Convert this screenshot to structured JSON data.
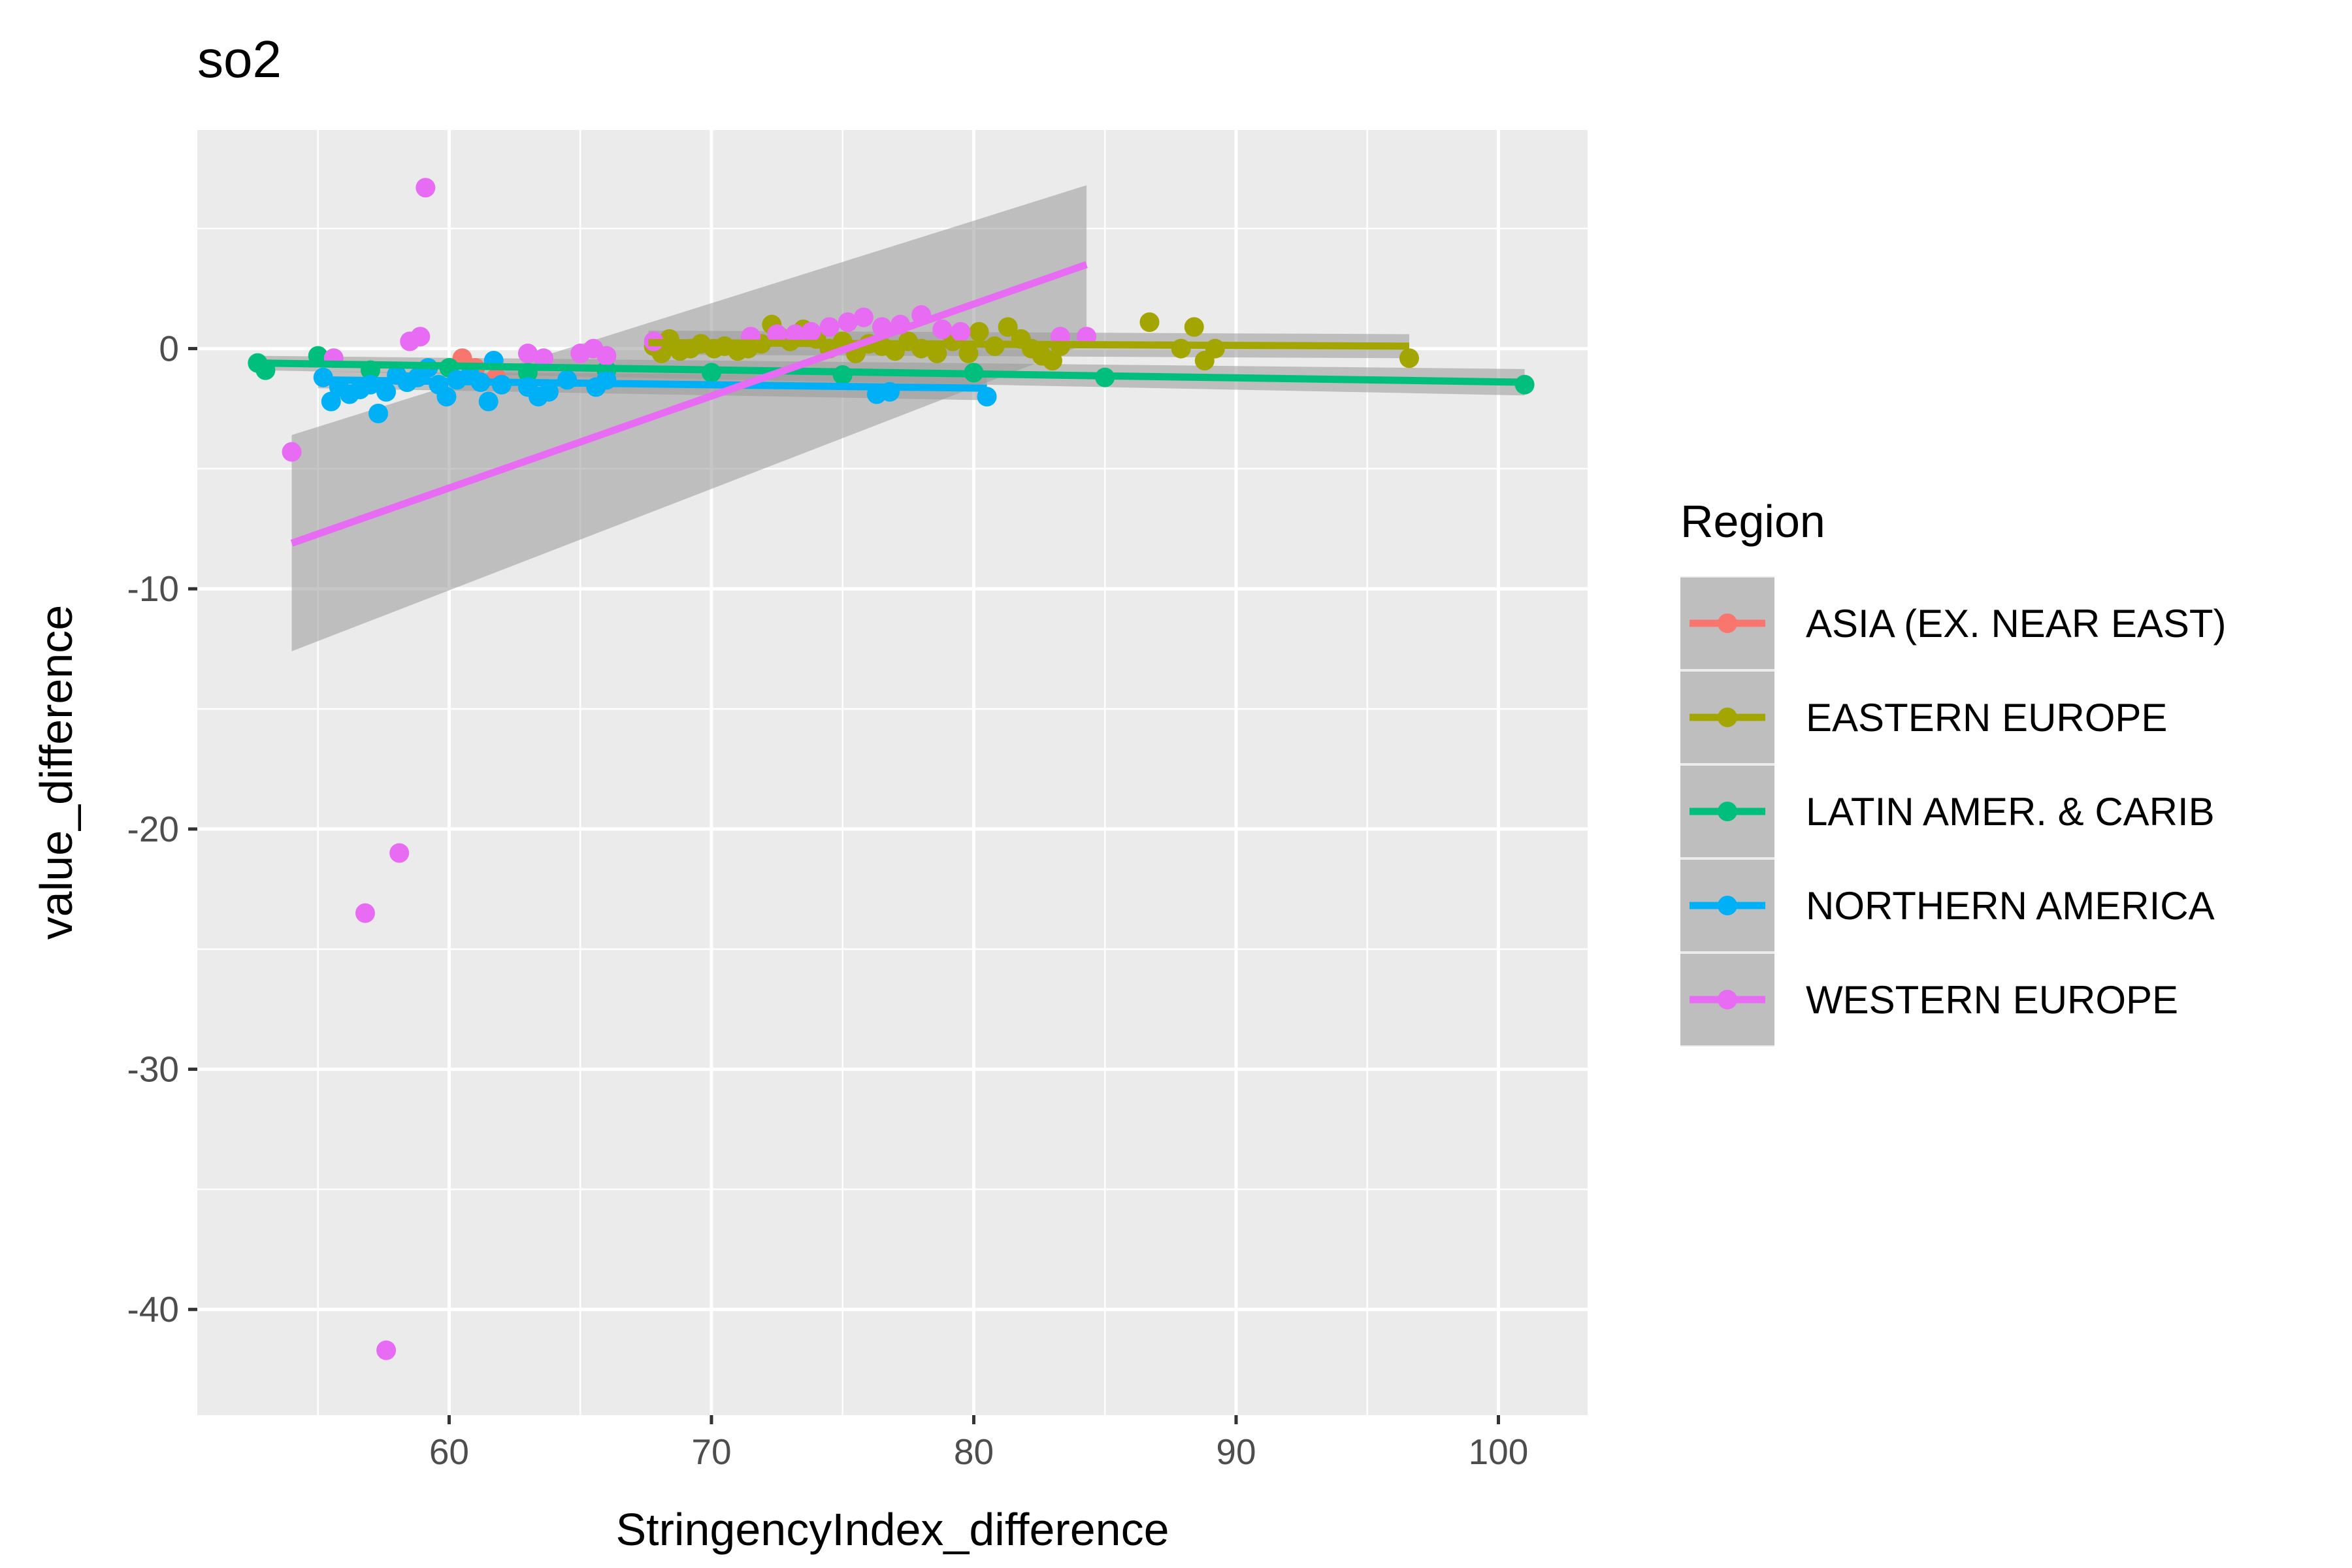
{
  "chart_data": {
    "type": "scatter",
    "title": "so2",
    "xlabel": "StringencyIndex_difference",
    "ylabel": "value_difference",
    "xlim": [
      50.4,
      103.4
    ],
    "ylim": [
      -44.4,
      9.1
    ],
    "x_ticks": [
      60,
      70,
      80,
      90,
      100
    ],
    "y_ticks": [
      0,
      -10,
      -20,
      -30,
      -40
    ],
    "grid": true,
    "legend_title": "Region",
    "legend_position": "right",
    "series": [
      {
        "name": "ASIA (EX. NEAR EAST)",
        "color": "#F8766D",
        "points": [
          [
            60.5,
            -0.4
          ],
          [
            61.0,
            -0.8
          ],
          [
            61.8,
            -1.2
          ]
        ],
        "fit": null
      },
      {
        "name": "EASTERN EUROPE",
        "color": "#A3A500",
        "points": [
          [
            67.8,
            0.1
          ],
          [
            68.1,
            -0.2
          ],
          [
            68.4,
            0.4
          ],
          [
            68.8,
            -0.1
          ],
          [
            69.2,
            0.0
          ],
          [
            69.6,
            0.2
          ],
          [
            70.1,
            0.0
          ],
          [
            70.5,
            0.1
          ],
          [
            71.0,
            -0.1
          ],
          [
            71.4,
            0.0
          ],
          [
            71.9,
            0.2
          ],
          [
            72.3,
            1.0
          ],
          [
            72.6,
            0.5
          ],
          [
            73.0,
            0.3
          ],
          [
            73.5,
            0.8
          ],
          [
            74.0,
            0.4
          ],
          [
            74.5,
            0.0
          ],
          [
            75.0,
            0.3
          ],
          [
            75.5,
            -0.2
          ],
          [
            76.0,
            0.2
          ],
          [
            76.5,
            0.1
          ],
          [
            77.0,
            -0.1
          ],
          [
            77.5,
            0.3
          ],
          [
            78.0,
            0.0
          ],
          [
            78.6,
            -0.2
          ],
          [
            79.2,
            0.3
          ],
          [
            79.8,
            -0.2
          ],
          [
            80.2,
            0.7
          ],
          [
            80.8,
            0.1
          ],
          [
            81.3,
            0.9
          ],
          [
            81.8,
            0.4
          ],
          [
            82.2,
            0.0
          ],
          [
            82.6,
            -0.3
          ],
          [
            83.0,
            -0.5
          ],
          [
            83.3,
            0.1
          ],
          [
            86.7,
            1.1
          ],
          [
            87.9,
            0.0
          ],
          [
            88.4,
            0.9
          ],
          [
            88.8,
            -0.5
          ],
          [
            89.2,
            0.0
          ],
          [
            96.6,
            -0.4
          ]
        ],
        "fit": {
          "x": [
            67.6,
            96.6
          ],
          "y": [
            0.25,
            0.1
          ],
          "ci_half_width": [
            0.5,
            0.5
          ]
        }
      },
      {
        "name": "LATIN AMER. & CARIB",
        "color": "#00BF7D",
        "points": [
          [
            52.7,
            -0.6
          ],
          [
            53.0,
            -0.9
          ],
          [
            55.0,
            -0.3
          ],
          [
            57.0,
            -0.9
          ],
          [
            60.0,
            -0.8
          ],
          [
            63.0,
            -1.0
          ],
          [
            66.0,
            -0.9
          ],
          [
            70.0,
            -1.0
          ],
          [
            75.0,
            -1.1
          ],
          [
            80.0,
            -1.0
          ],
          [
            85.0,
            -1.2
          ],
          [
            101.0,
            -1.5
          ]
        ],
        "fit": {
          "x": [
            52.7,
            101.0
          ],
          "y": [
            -0.6,
            -1.4
          ],
          "ci_half_width": [
            0.3,
            0.55
          ]
        }
      },
      {
        "name": "NORTHERN AMERICA",
        "color": "#00B0F6",
        "points": [
          [
            55.2,
            -1.2
          ],
          [
            55.5,
            -2.2
          ],
          [
            55.8,
            -1.6
          ],
          [
            56.2,
            -1.9
          ],
          [
            56.6,
            -1.7
          ],
          [
            57.0,
            -1.5
          ],
          [
            57.3,
            -2.7
          ],
          [
            57.6,
            -1.8
          ],
          [
            58.0,
            -1.1
          ],
          [
            58.4,
            -1.4
          ],
          [
            58.8,
            -1.2
          ],
          [
            59.2,
            -0.8
          ],
          [
            59.6,
            -1.5
          ],
          [
            59.9,
            -2.0
          ],
          [
            60.3,
            -1.3
          ],
          [
            60.8,
            -1.1
          ],
          [
            61.2,
            -1.4
          ],
          [
            61.5,
            -2.2
          ],
          [
            61.7,
            -0.5
          ],
          [
            62.0,
            -1.5
          ],
          [
            63.0,
            -1.6
          ],
          [
            63.4,
            -2.0
          ],
          [
            63.8,
            -1.8
          ],
          [
            64.5,
            -1.3
          ],
          [
            65.6,
            -1.6
          ],
          [
            66.0,
            -1.3
          ],
          [
            76.3,
            -1.9
          ],
          [
            76.8,
            -1.8
          ],
          [
            80.5,
            -2.0
          ]
        ],
        "fit": {
          "x": [
            55.0,
            80.5
          ],
          "y": [
            -1.3,
            -1.65
          ],
          "ci_half_width": [
            0.35,
            0.5
          ]
        }
      },
      {
        "name": "WESTERN EUROPE",
        "color": "#E76BF3",
        "points": [
          [
            54.0,
            -4.3
          ],
          [
            55.6,
            -0.4
          ],
          [
            56.8,
            -23.5
          ],
          [
            57.6,
            -41.7
          ],
          [
            58.1,
            -21.0
          ],
          [
            58.5,
            0.3
          ],
          [
            58.9,
            0.5
          ],
          [
            59.1,
            6.7
          ],
          [
            63.0,
            -0.2
          ],
          [
            63.6,
            -0.4
          ],
          [
            65.0,
            -0.2
          ],
          [
            65.5,
            0.0
          ],
          [
            66.0,
            -0.3
          ],
          [
            67.8,
            0.3
          ],
          [
            71.5,
            0.5
          ],
          [
            72.5,
            0.6
          ],
          [
            73.2,
            0.6
          ],
          [
            73.8,
            0.7
          ],
          [
            74.5,
            0.9
          ],
          [
            75.2,
            1.1
          ],
          [
            75.8,
            1.3
          ],
          [
            76.5,
            0.9
          ],
          [
            77.2,
            1.0
          ],
          [
            78.0,
            1.4
          ],
          [
            78.8,
            0.8
          ],
          [
            79.5,
            0.7
          ],
          [
            83.3,
            0.5
          ],
          [
            84.3,
            0.5
          ]
        ],
        "fit": {
          "x": [
            54.0,
            84.3
          ],
          "y": [
            -8.1,
            3.5
          ],
          "ci_half_width": [
            4.5,
            3.3
          ]
        }
      }
    ]
  }
}
